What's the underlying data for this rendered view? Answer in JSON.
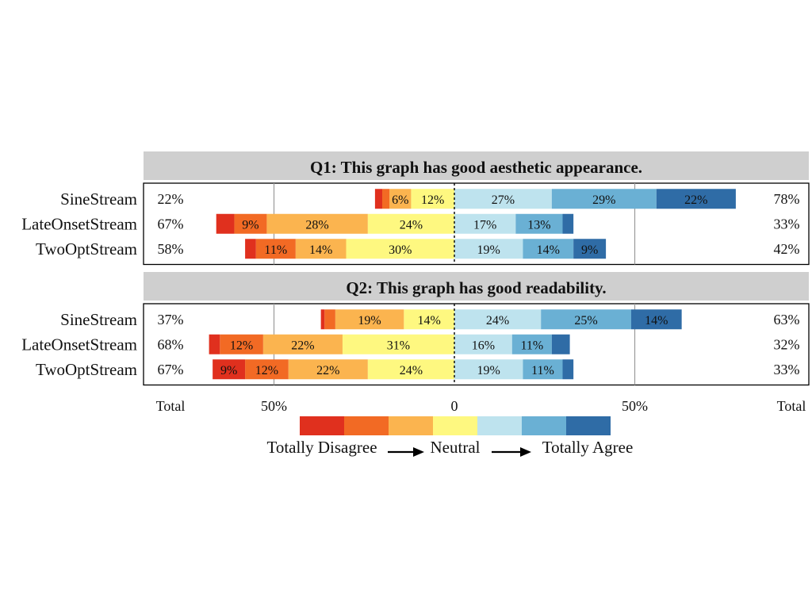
{
  "chart_data": {
    "type": "bar",
    "subtype": "diverging-stacked-likert",
    "scale": {
      "colors": [
        "#e0301e",
        "#f26a24",
        "#fbb44f",
        "#fef880",
        "#bee3ee",
        "#6ab0d4",
        "#2f6ca6"
      ],
      "label_min": "Totally Disagree",
      "label_mid": "Neutral",
      "label_max": "Totally Agree"
    },
    "axis": {
      "ticks": [
        {
          "value": -50,
          "label": "50%"
        },
        {
          "value": 0,
          "label": "0"
        },
        {
          "value": 50,
          "label": "50%"
        }
      ],
      "total_left": "Total",
      "total_right": "Total"
    },
    "panels": [
      {
        "title": "Q1: This graph has good aesthetic appearance.",
        "rows": [
          {
            "name": "SineStream",
            "total_left": "22%",
            "total_right": "78%",
            "values": [
              2,
              2,
              6,
              12,
              27,
              29,
              22
            ],
            "labels": [
              "",
              "",
              "6%",
              "12%",
              "27%",
              "29%",
              "22%"
            ]
          },
          {
            "name": "LateOnsetStream",
            "total_left": "67%",
            "total_right": "33%",
            "values": [
              5,
              9,
              28,
              24,
              17,
              13,
              3
            ],
            "labels": [
              "",
              "9%",
              "28%",
              "24%",
              "17%",
              "13%",
              ""
            ]
          },
          {
            "name": "TwoOptStream",
            "total_left": "58%",
            "total_right": "42%",
            "values": [
              3,
              11,
              14,
              30,
              19,
              14,
              9
            ],
            "labels": [
              "",
              "11%",
              "14%",
              "30%",
              "19%",
              "14%",
              "9%"
            ]
          }
        ]
      },
      {
        "title": "Q2: This graph has good readability.",
        "rows": [
          {
            "name": "SineStream",
            "total_left": "37%",
            "total_right": "63%",
            "values": [
              1,
              3,
              19,
              14,
              24,
              25,
              14
            ],
            "labels": [
              "",
              "",
              "19%",
              "14%",
              "24%",
              "25%",
              "14%"
            ]
          },
          {
            "name": "LateOnsetStream",
            "total_left": "68%",
            "total_right": "32%",
            "values": [
              3,
              12,
              22,
              31,
              16,
              11,
              5
            ],
            "labels": [
              "",
              "12%",
              "22%",
              "31%",
              "16%",
              "11%",
              ""
            ]
          },
          {
            "name": "TwoOptStream",
            "total_left": "67%",
            "total_right": "33%",
            "values": [
              9,
              12,
              22,
              24,
              19,
              11,
              3
            ],
            "labels": [
              "9%",
              "12%",
              "22%",
              "24%",
              "19%",
              "11%",
              ""
            ]
          }
        ]
      }
    ]
  }
}
